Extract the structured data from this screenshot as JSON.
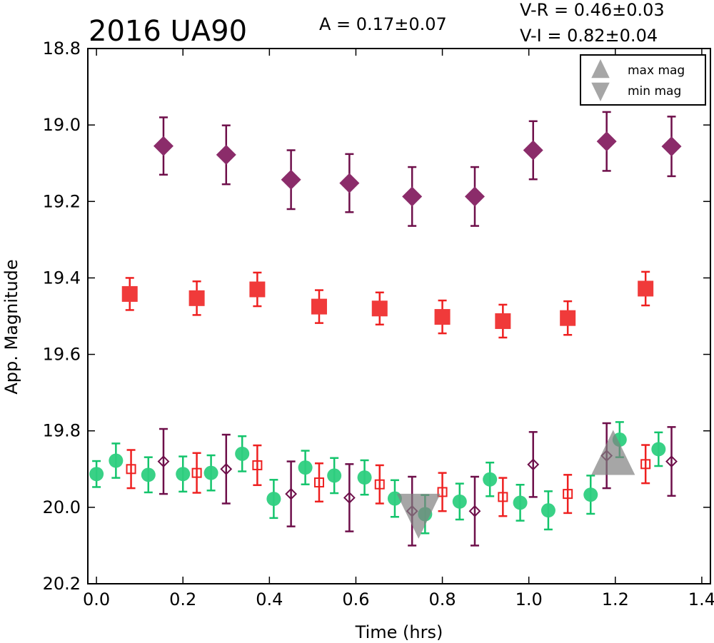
{
  "chart_data": {
    "type": "scatter",
    "title": "2016 UA90",
    "annotations": {
      "amplitude": "A  = 0.17±0.07",
      "v_r": "V-R = 0.46±0.03",
      "v_i": "V-I  = 0.82±0.04"
    },
    "xlabel": "Time (hrs)",
    "ylabel": "App. Magnitude",
    "xlim": [
      -0.02,
      1.42
    ],
    "ylim": [
      20.2,
      18.8
    ],
    "y_inverted": true,
    "xticks": [
      "0.0",
      "0.2",
      "0.4",
      "0.6",
      "0.8",
      "1.0",
      "1.2",
      "1.4"
    ],
    "yticks": [
      "18.8",
      "19.0",
      "19.2",
      "19.4",
      "19.6",
      "19.8",
      "20.0",
      "20.2"
    ],
    "grid": false,
    "legend": {
      "placement": "top-right",
      "entries": [
        {
          "label": "max mag",
          "marker": "triangle-up",
          "color": "#808080"
        },
        {
          "label": "min mag",
          "marker": "triangle-down",
          "color": "#808080"
        }
      ]
    },
    "series": [
      {
        "marker": "diamond",
        "filled": true,
        "color": "#8b2c6a",
        "errcolor": "#6e0f4a",
        "points": [
          {
            "x": 0.155,
            "y": 19.055,
            "err": 0.075
          },
          {
            "x": 0.3,
            "y": 19.078,
            "err": 0.077
          },
          {
            "x": 0.45,
            "y": 19.143,
            "err": 0.077
          },
          {
            "x": 0.585,
            "y": 19.152,
            "err": 0.076
          },
          {
            "x": 0.73,
            "y": 19.187,
            "err": 0.077
          },
          {
            "x": 0.875,
            "y": 19.187,
            "err": 0.077
          },
          {
            "x": 1.01,
            "y": 19.066,
            "err": 0.076
          },
          {
            "x": 1.18,
            "y": 19.043,
            "err": 0.077
          },
          {
            "x": 1.33,
            "y": 19.056,
            "err": 0.078
          }
        ]
      },
      {
        "marker": "square",
        "filled": true,
        "color": "#f03a3a",
        "errcolor": "#ee2020",
        "points": [
          {
            "x": 0.077,
            "y": 19.442,
            "err": 0.042
          },
          {
            "x": 0.232,
            "y": 19.453,
            "err": 0.044
          },
          {
            "x": 0.372,
            "y": 19.43,
            "err": 0.044
          },
          {
            "x": 0.515,
            "y": 19.475,
            "err": 0.043
          },
          {
            "x": 0.655,
            "y": 19.48,
            "err": 0.042
          },
          {
            "x": 0.8,
            "y": 19.502,
            "err": 0.043
          },
          {
            "x": 0.94,
            "y": 19.513,
            "err": 0.043
          },
          {
            "x": 1.09,
            "y": 19.505,
            "err": 0.044
          },
          {
            "x": 1.27,
            "y": 19.428,
            "err": 0.044
          }
        ]
      },
      {
        "marker": "circle",
        "filled": true,
        "color": "#2ecf80",
        "errcolor": "#14c46c",
        "points": [
          {
            "x": 0.0,
            "y": 19.913,
            "err": 0.034
          },
          {
            "x": 0.045,
            "y": 19.878,
            "err": 0.045
          },
          {
            "x": 0.12,
            "y": 19.915,
            "err": 0.046
          },
          {
            "x": 0.2,
            "y": 19.913,
            "err": 0.046
          },
          {
            "x": 0.265,
            "y": 19.91,
            "err": 0.046
          },
          {
            "x": 0.337,
            "y": 19.86,
            "err": 0.046
          },
          {
            "x": 0.41,
            "y": 19.978,
            "err": 0.05
          },
          {
            "x": 0.483,
            "y": 19.896,
            "err": 0.044
          },
          {
            "x": 0.55,
            "y": 19.917,
            "err": 0.046
          },
          {
            "x": 0.62,
            "y": 19.922,
            "err": 0.045
          },
          {
            "x": 0.69,
            "y": 19.977,
            "err": 0.048
          },
          {
            "x": 0.76,
            "y": 20.018,
            "err": 0.05
          },
          {
            "x": 0.84,
            "y": 19.985,
            "err": 0.047
          },
          {
            "x": 0.91,
            "y": 19.927,
            "err": 0.044
          },
          {
            "x": 0.98,
            "y": 19.988,
            "err": 0.047
          },
          {
            "x": 1.045,
            "y": 20.008,
            "err": 0.05
          },
          {
            "x": 1.143,
            "y": 19.967,
            "err": 0.05
          },
          {
            "x": 1.21,
            "y": 19.823,
            "err": 0.046
          },
          {
            "x": 1.3,
            "y": 19.848,
            "err": 0.044
          }
        ]
      },
      {
        "marker": "square",
        "filled": false,
        "color": "#ee2020",
        "errcolor": "#ee2020",
        "points": [
          {
            "x": 0.08,
            "y": 19.9,
            "err": 0.05
          },
          {
            "x": 0.232,
            "y": 19.91,
            "err": 0.052
          },
          {
            "x": 0.372,
            "y": 19.89,
            "err": 0.052
          },
          {
            "x": 0.515,
            "y": 19.935,
            "err": 0.05
          },
          {
            "x": 0.655,
            "y": 19.94,
            "err": 0.05
          },
          {
            "x": 0.8,
            "y": 19.96,
            "err": 0.05
          },
          {
            "x": 0.94,
            "y": 19.973,
            "err": 0.05
          },
          {
            "x": 1.09,
            "y": 19.965,
            "err": 0.05
          },
          {
            "x": 1.27,
            "y": 19.887,
            "err": 0.05
          }
        ]
      },
      {
        "marker": "diamond",
        "filled": false,
        "color": "#6e0f4a",
        "errcolor": "#6e0f4a",
        "points": [
          {
            "x": 0.155,
            "y": 19.88,
            "err": 0.085
          },
          {
            "x": 0.3,
            "y": 19.9,
            "err": 0.09
          },
          {
            "x": 0.45,
            "y": 19.965,
            "err": 0.085
          },
          {
            "x": 0.585,
            "y": 19.975,
            "err": 0.088
          },
          {
            "x": 0.73,
            "y": 20.01,
            "err": 0.09
          },
          {
            "x": 0.875,
            "y": 20.01,
            "err": 0.09
          },
          {
            "x": 1.01,
            "y": 19.888,
            "err": 0.085
          },
          {
            "x": 1.18,
            "y": 19.865,
            "err": 0.085
          },
          {
            "x": 1.33,
            "y": 19.88,
            "err": 0.09
          }
        ]
      }
    ],
    "extrema": [
      {
        "label": "max mag",
        "marker": "triangle-up",
        "color": "#808080",
        "x": 1.195,
        "y": 19.865
      },
      {
        "label": "min mag",
        "marker": "triangle-down",
        "color": "#808080",
        "x": 0.745,
        "y": 20.015
      }
    ]
  }
}
